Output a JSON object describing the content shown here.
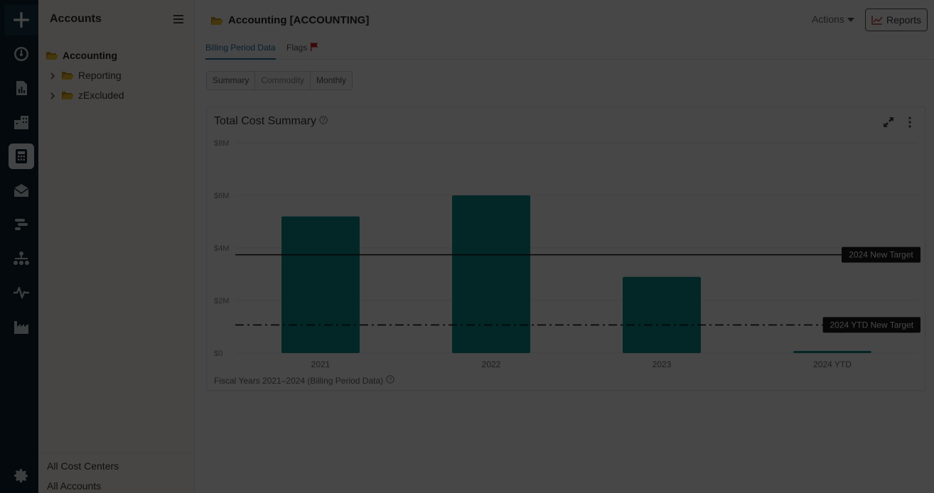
{
  "rail": {
    "items": [
      "add-icon",
      "dashboard-icon",
      "bar-chart-icon",
      "building-icon",
      "calculator-icon",
      "mail-icon",
      "gantt-icon",
      "hierarchy-icon",
      "pulse-icon",
      "factory-icon",
      "gear-icon"
    ],
    "active": "calculator-icon"
  },
  "sidebar": {
    "title": "Accounts",
    "tree": {
      "root": "Accounting",
      "children": [
        "Reporting",
        "zExcluded"
      ]
    },
    "footer": {
      "cost_centers": "All Cost Centers",
      "accounts": "All Accounts"
    }
  },
  "header": {
    "title": "Accounting [ACCOUNTING]",
    "actions_label": "Actions",
    "reports_label": "Reports"
  },
  "tabs": {
    "billing": "Billing Period Data",
    "flags": "Flags"
  },
  "subtabs": {
    "summary": "Summary",
    "commodity": "Commodity",
    "monthly": "Monthly"
  },
  "card": {
    "title": "Total Cost Summary",
    "footnote": "Fiscal Years 2021–2024 (Billing Period Data)"
  },
  "colors": {
    "bar": "#0e8c8c",
    "rail": "#0f2330",
    "accent": "#1f6fa3",
    "flag": "#d01c1c",
    "folder": "#e8b020"
  },
  "chart_data": {
    "type": "bar",
    "categories": [
      "2021",
      "2022",
      "2023",
      "2024 YTD"
    ],
    "values": [
      5200000,
      6000000,
      2900000,
      80000
    ],
    "ylim": [
      0,
      8000000
    ],
    "y_ticks": [
      0,
      2000000,
      4000000,
      6000000,
      8000000
    ],
    "y_tick_labels": [
      "$0",
      "$2M",
      "$4M",
      "$6M",
      "$8M"
    ],
    "grid": true,
    "reference_lines": [
      {
        "label": "2024 New Target",
        "value": 3740000,
        "style": "solid"
      },
      {
        "label": "2024 YTD New Target",
        "value": 1070000,
        "style": "dash-dot"
      }
    ]
  }
}
